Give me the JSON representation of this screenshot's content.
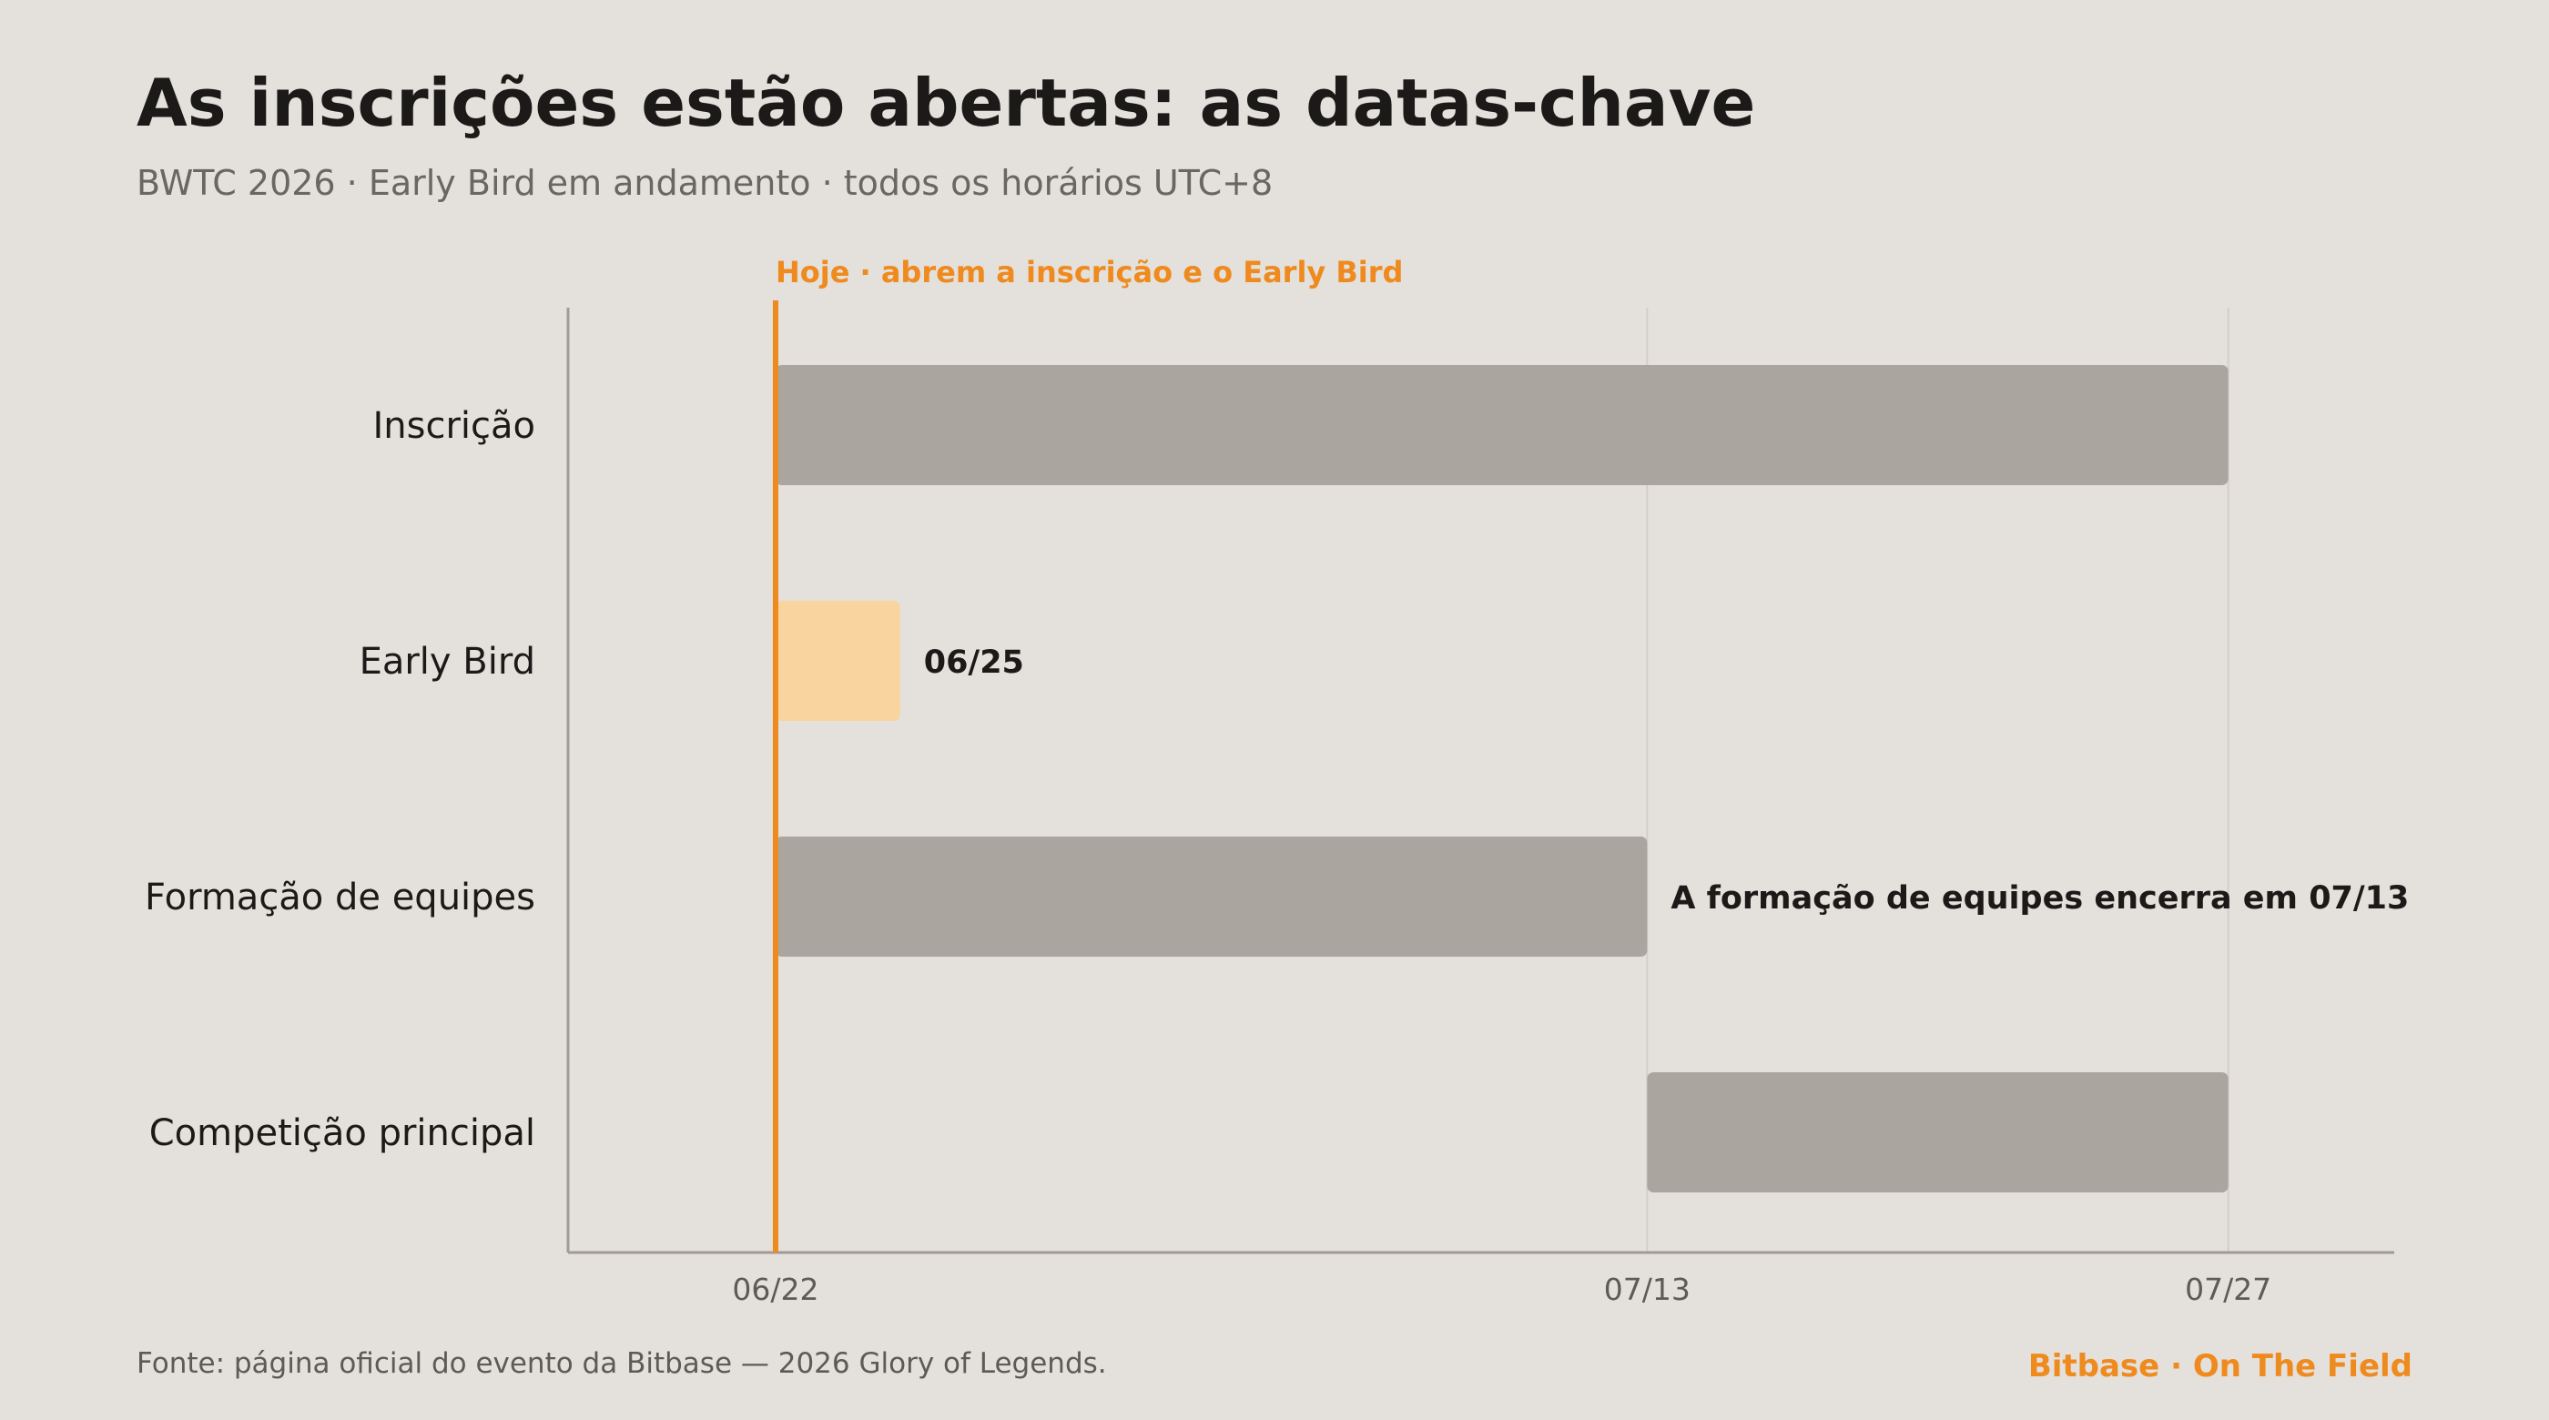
{
  "header": {
    "title": "As inscrições estão abertas: as datas-chave",
    "subtitle": "BWTC 2026 · Early Bird em andamento · todos os horários UTC+8"
  },
  "chart_data": {
    "type": "bar",
    "orientation": "horizontal-timeline",
    "categories": [
      "Inscrição",
      "Early Bird",
      "Formação de equipes",
      "Competição principal"
    ],
    "bars": [
      {
        "category": "Inscrição",
        "start": "06/22",
        "end": "07/27",
        "label": ""
      },
      {
        "category": "Early Bird",
        "start": "06/22",
        "end": "06/25",
        "label": "06/25"
      },
      {
        "category": "Formação de equipes",
        "start": "06/22",
        "end": "07/13",
        "label": "A formação de equipes encerra em 07/13"
      },
      {
        "category": "Competição principal",
        "start": "07/13",
        "end": "07/27",
        "label": ""
      }
    ],
    "x_ticks": [
      "06/22",
      "07/13",
      "07/27"
    ],
    "x_range": [
      "06/17",
      "07/31"
    ],
    "today_marker": {
      "date": "06/22",
      "label": "Hoje · abrem a inscrição e o Early Bird"
    },
    "gridlines": "vertical at tick dates",
    "colors": {
      "bar": "#aaa59f",
      "highlight_bar": "#f9d49e",
      "today": "#ee8a1e",
      "axis": "#a09b96",
      "grid": "#d3cec8",
      "background": "#e4e0db"
    }
  },
  "footer": {
    "source": "Fonte: página oficial do evento da Bitbase — 2026 Glory of Legends.",
    "brand": "Bitbase · On The Field"
  }
}
